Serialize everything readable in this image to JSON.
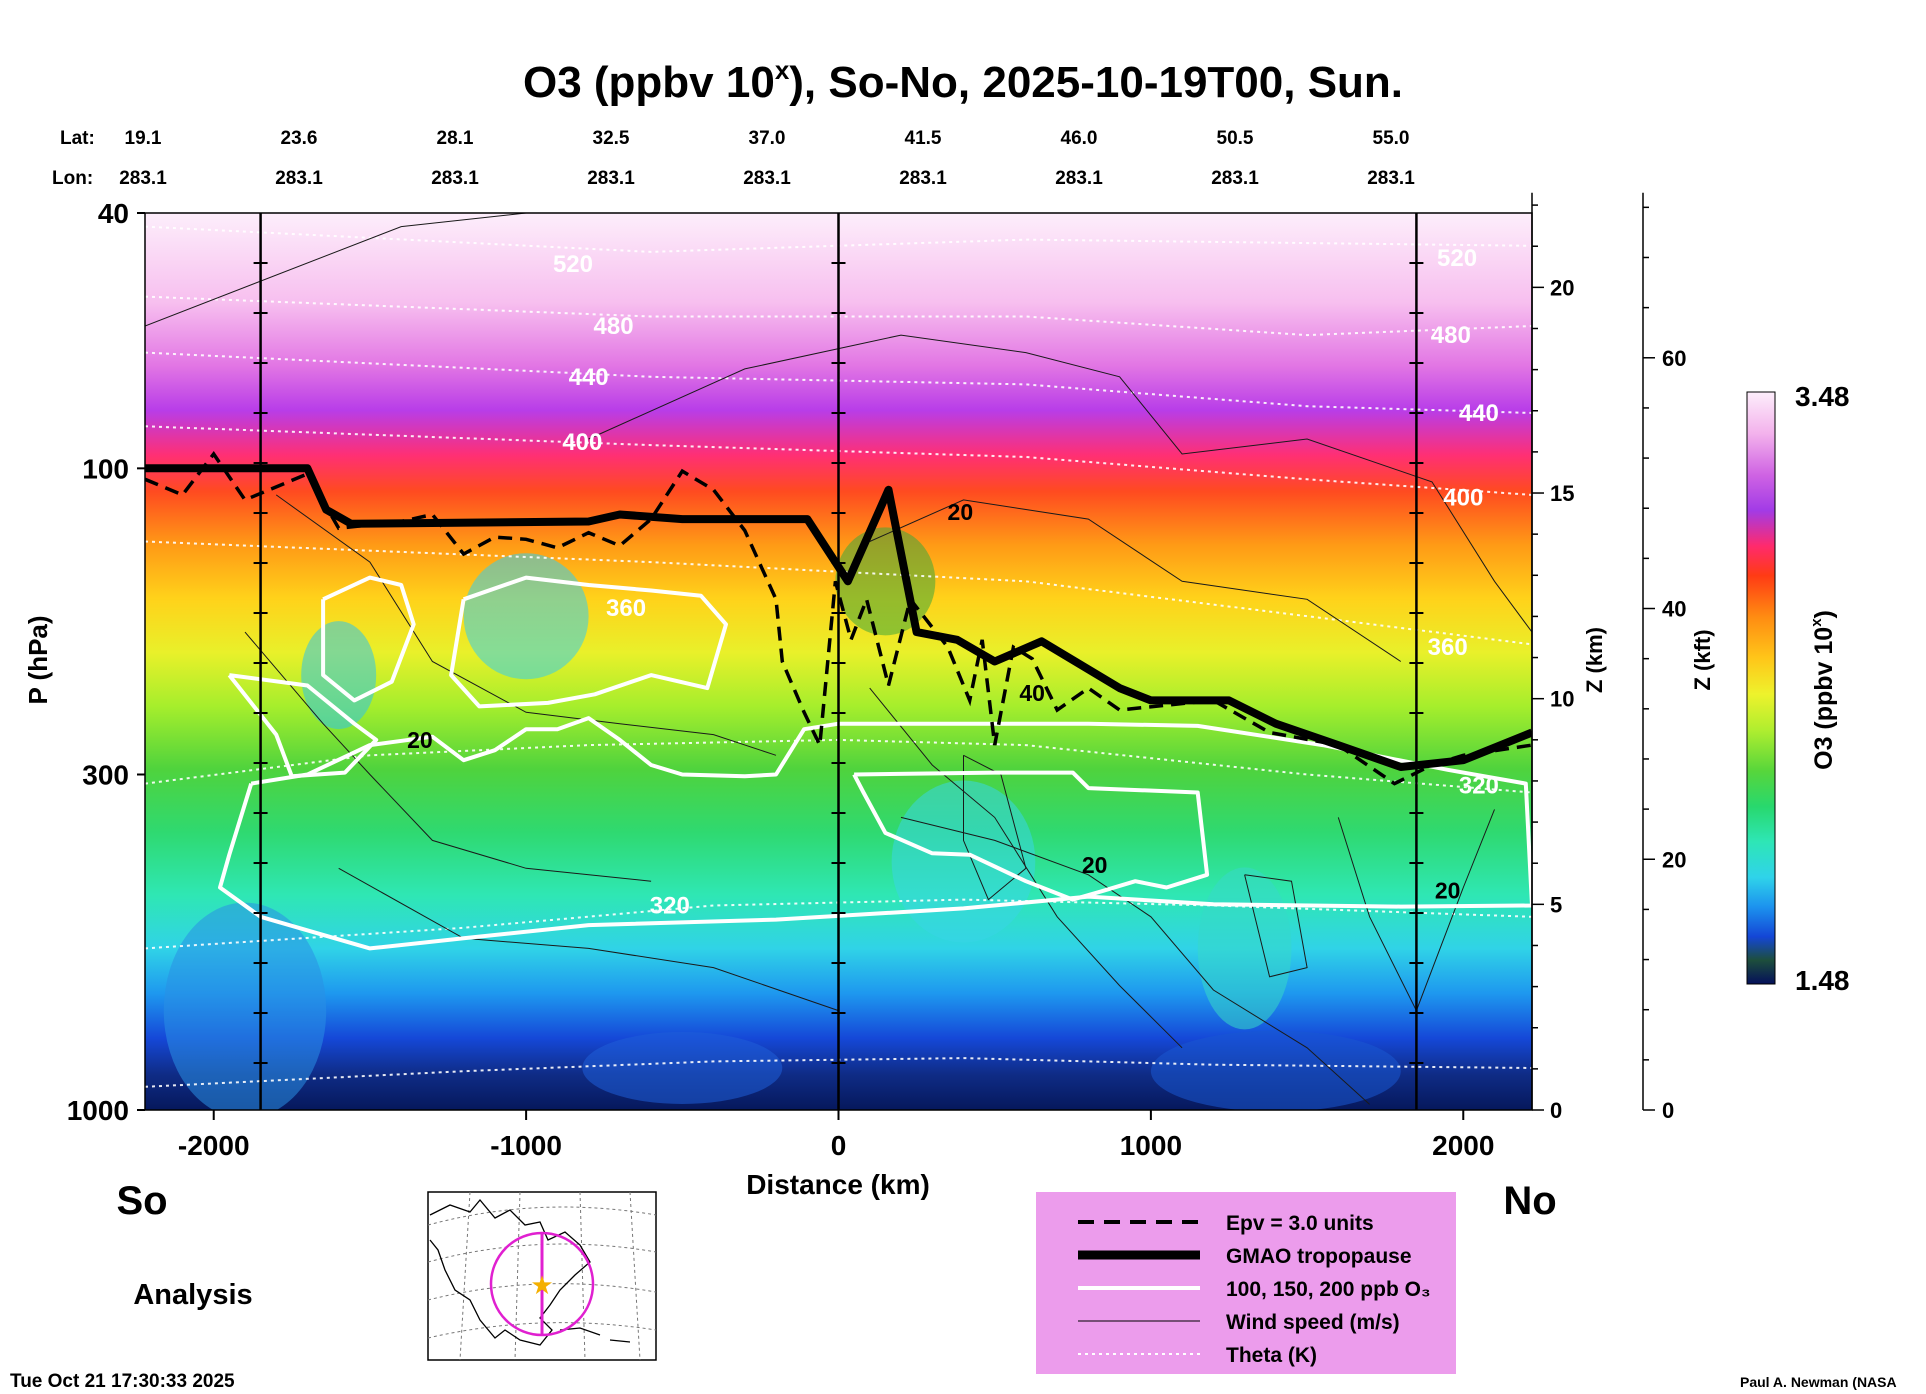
{
  "chart_data": {
    "type": "heatmap",
    "title": "O3 (ppbv 10",
    "title_sup": "x",
    "title_rest": "), So-No, 2025-10-19T00, Sun.",
    "xlabel": "Distance (km)",
    "ylabel": "P (hPa)",
    "x_ticks": [
      -2000,
      -1000,
      0,
      1000,
      2000
    ],
    "xlim": [
      -2220,
      2220
    ],
    "y_ticks": [
      40,
      100,
      300,
      1000
    ],
    "ylim": [
      1000,
      40
    ],
    "yscale": "log",
    "z_km_ticks": [
      0,
      5,
      10,
      15,
      20
    ],
    "z_km_label": "Z (km)",
    "z_kft_ticks": [
      0,
      20,
      40,
      60
    ],
    "z_kft_label": "Z (kft)",
    "lat_label": "Lat:",
    "lon_label": "Lon:",
    "lats": [
      "19.1",
      "23.6",
      "28.1",
      "32.5",
      "37.0",
      "41.5",
      "46.0",
      "50.5",
      "55.0"
    ],
    "lons": [
      "283.1",
      "283.1",
      "283.1",
      "283.1",
      "283.1",
      "283.1",
      "283.1",
      "283.1",
      "283.1"
    ],
    "colorbar": {
      "label": "O3 (ppbv 10",
      "label_sup": "x",
      "label_end": ")",
      "min": "1.48",
      "max": "3.48"
    },
    "theta_labels": [
      {
        "text": "520",
        "x": -850,
        "p": 48
      },
      {
        "text": "480",
        "x": -720,
        "p": 60
      },
      {
        "text": "440",
        "x": -800,
        "p": 72
      },
      {
        "text": "400",
        "x": -820,
        "p": 91
      },
      {
        "text": "360",
        "x": -680,
        "p": 165
      },
      {
        "text": "320",
        "x": -540,
        "p": 480
      },
      {
        "text": "520",
        "x": 1980,
        "p": 47
      },
      {
        "text": "480",
        "x": 1960,
        "p": 62
      },
      {
        "text": "440",
        "x": 2050,
        "p": 82
      },
      {
        "text": "400",
        "x": 2000,
        "p": 111
      },
      {
        "text": "360",
        "x": 1950,
        "p": 190
      },
      {
        "text": "320",
        "x": 2050,
        "p": 312
      }
    ],
    "wind_labels": [
      {
        "text": "20",
        "x": 390,
        "p": 117
      },
      {
        "text": "20",
        "x": -1340,
        "p": 265
      },
      {
        "text": "20",
        "x": 820,
        "p": 415
      },
      {
        "text": "40",
        "x": 620,
        "p": 224
      },
      {
        "text": "20",
        "x": 1950,
        "p": 455
      }
    ],
    "legend": [
      {
        "style": "dashed",
        "label": "Epv = 3.0 units"
      },
      {
        "style": "thick",
        "label": "GMAO tropopause"
      },
      {
        "style": "white",
        "label": "100, 150, 200 ppb O₃"
      },
      {
        "style": "thin",
        "label": "Wind speed (m/s)"
      },
      {
        "style": "dotted",
        "label": "Theta (K)"
      }
    ],
    "tropopause": [
      [
        -2220,
        100
      ],
      [
        -1700,
        100
      ],
      [
        -1640,
        116
      ],
      [
        -1560,
        122
      ],
      [
        -800,
        121
      ],
      [
        -700,
        118
      ],
      [
        -500,
        120
      ],
      [
        -100,
        120
      ],
      [
        30,
        150
      ],
      [
        160,
        108
      ],
      [
        250,
        180
      ],
      [
        380,
        185
      ],
      [
        500,
        200
      ],
      [
        650,
        186
      ],
      [
        900,
        220
      ],
      [
        1000,
        230
      ],
      [
        1250,
        230
      ],
      [
        1400,
        250
      ],
      [
        1600,
        270
      ],
      [
        1800,
        292
      ],
      [
        2000,
        285
      ],
      [
        2220,
        258
      ]
    ],
    "epv": [
      [
        -2220,
        104
      ],
      [
        -2100,
        110
      ],
      [
        -2000,
        95
      ],
      [
        -1900,
        112
      ],
      [
        -1700,
        102
      ],
      [
        -1600,
        124
      ],
      [
        -1400,
        121
      ],
      [
        -1300,
        118
      ],
      [
        -1200,
        136
      ],
      [
        -1100,
        128
      ],
      [
        -1000,
        129
      ],
      [
        -900,
        133
      ],
      [
        -800,
        126
      ],
      [
        -700,
        132
      ],
      [
        -600,
        120
      ],
      [
        -500,
        101
      ],
      [
        -400,
        108
      ],
      [
        -300,
        125
      ],
      [
        -200,
        160
      ],
      [
        -180,
        200
      ],
      [
        -110,
        240
      ],
      [
        -60,
        270
      ],
      [
        -10,
        150
      ],
      [
        40,
        185
      ],
      [
        90,
        160
      ],
      [
        160,
        218
      ],
      [
        230,
        160
      ],
      [
        350,
        190
      ],
      [
        420,
        230
      ],
      [
        460,
        185
      ],
      [
        500,
        270
      ],
      [
        560,
        190
      ],
      [
        620,
        198
      ],
      [
        700,
        238
      ],
      [
        800,
        220
      ],
      [
        900,
        238
      ],
      [
        1200,
        230
      ],
      [
        1380,
        258
      ],
      [
        1600,
        270
      ],
      [
        1780,
        310
      ],
      [
        1900,
        290
      ],
      [
        2000,
        280
      ],
      [
        2220,
        270
      ]
    ],
    "o3_100ppb": [
      [
        [
          -1950,
          210
        ],
        [
          -1700,
          218
        ],
        [
          -1550,
          250
        ],
        [
          -1480,
          265
        ],
        [
          -1580,
          298
        ],
        [
          -1750,
          302
        ],
        [
          -1800,
          260
        ],
        [
          -1950,
          210
        ]
      ],
      [
        [
          -1880,
          310
        ],
        [
          -1700,
          300
        ],
        [
          -1500,
          270
        ],
        [
          -1300,
          262
        ],
        [
          -1200,
          285
        ],
        [
          -1100,
          275
        ],
        [
          -1000,
          255
        ],
        [
          -900,
          255
        ],
        [
          -800,
          245
        ],
        [
          -700,
          265
        ],
        [
          -600,
          290
        ],
        [
          -500,
          300
        ],
        [
          -300,
          302
        ],
        [
          -200,
          300
        ],
        [
          -110,
          255
        ],
        [
          0,
          250
        ],
        [
          800,
          250
        ],
        [
          1150,
          252
        ],
        [
          1550,
          270
        ],
        [
          1950,
          295
        ],
        [
          2200,
          310
        ],
        [
          2220,
          480
        ],
        [
          1800,
          482
        ],
        [
          1200,
          478
        ],
        [
          800,
          465
        ],
        [
          400,
          485
        ],
        [
          -200,
          505
        ],
        [
          -800,
          515
        ],
        [
          -1200,
          540
        ],
        [
          -1500,
          560
        ],
        [
          -1850,
          500
        ],
        [
          -1980,
          450
        ],
        [
          -1950,
          400
        ],
        [
          -1880,
          310
        ]
      ]
    ],
    "o3_150ppb": [
      [
        [
          -1650,
          160
        ],
        [
          -1500,
          148
        ],
        [
          -1400,
          152
        ],
        [
          -1360,
          175
        ],
        [
          -1430,
          215
        ],
        [
          -1550,
          230
        ],
        [
          -1650,
          210
        ],
        [
          -1650,
          160
        ]
      ],
      [
        [
          -1200,
          160
        ],
        [
          -1000,
          148
        ],
        [
          -800,
          152
        ],
        [
          -600,
          155
        ],
        [
          -440,
          158
        ],
        [
          -360,
          175
        ],
        [
          -420,
          220
        ],
        [
          -600,
          210
        ],
        [
          -780,
          225
        ],
        [
          -930,
          232
        ],
        [
          -1150,
          235
        ],
        [
          -1240,
          210
        ],
        [
          -1200,
          160
        ]
      ],
      [
        [
          50,
          300
        ],
        [
          500,
          298
        ],
        [
          750,
          298
        ],
        [
          800,
          315
        ],
        [
          1150,
          320
        ],
        [
          1180,
          430
        ],
        [
          1050,
          450
        ],
        [
          950,
          440
        ],
        [
          850,
          455
        ],
        [
          750,
          470
        ],
        [
          600,
          440
        ],
        [
          420,
          400
        ],
        [
          300,
          398
        ],
        [
          150,
          370
        ],
        [
          80,
          320
        ],
        [
          50,
          300
        ]
      ]
    ]
  }
}
